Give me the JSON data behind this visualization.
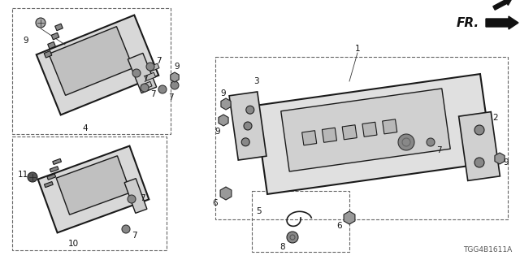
{
  "bg_color": "#ffffff",
  "diagram_id": "TGG4B1611A",
  "line_color": "#1a1a1a",
  "text_color": "#111111",
  "dashed_color": "#666666",
  "fr_text": "FR.",
  "label_fontsize": 7.5,
  "id_fontsize": 6.5
}
